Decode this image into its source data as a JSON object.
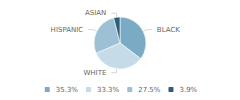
{
  "chart_data": {
    "type": "pie",
    "categories": [
      "BLACK",
      "WHITE",
      "HISPANIC",
      "ASIAN"
    ],
    "values": [
      35.3,
      33.3,
      27.5,
      3.9
    ],
    "value_labels": [
      "35.3%",
      "33.3%",
      "27.5%",
      "3.9%"
    ],
    "colors": [
      "#7aaac4",
      "#c5dce8",
      "#9dc0d4",
      "#2d5f7a"
    ],
    "legend": "bottom"
  }
}
